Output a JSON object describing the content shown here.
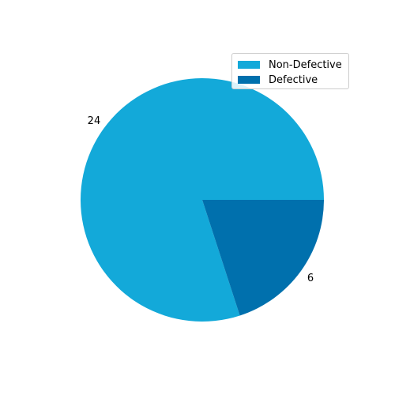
{
  "chart_data": {
    "type": "pie",
    "categories": [
      "Non-Defective",
      "Defective"
    ],
    "values": [
      24,
      6
    ],
    "labels": [
      "24",
      "6"
    ],
    "colors": [
      "#13a9d9",
      "#0070ad"
    ],
    "title": "",
    "legend_position": "top-right",
    "start_angle": 0,
    "direction": "counterclockwise"
  }
}
